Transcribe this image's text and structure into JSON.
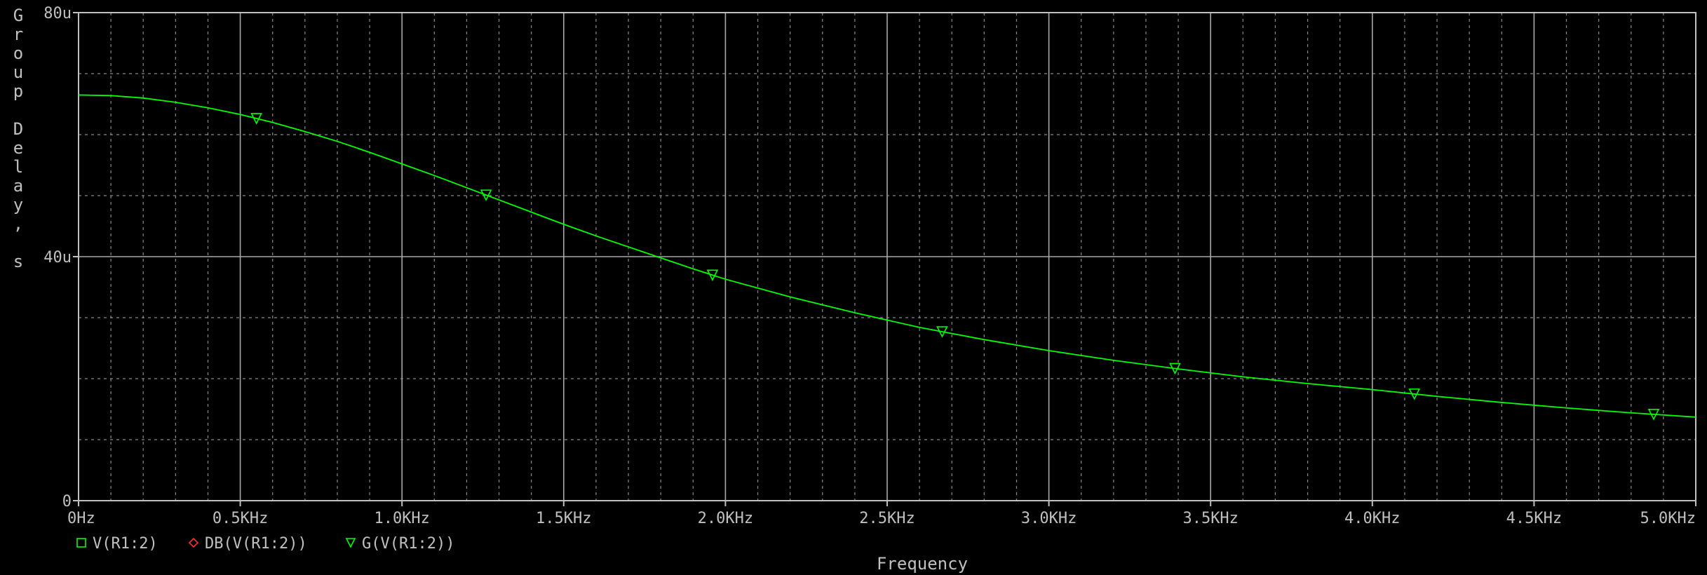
{
  "chart_data": {
    "type": "line",
    "xlabel": "Frequency",
    "ylabel": "Group Delay, s",
    "xlim": [
      0,
      5000
    ],
    "ylim": [
      0,
      80
    ],
    "x_ticks": [
      {
        "value": 0,
        "label": "0Hz"
      },
      {
        "value": 500,
        "label": "0.5KHz"
      },
      {
        "value": 1000,
        "label": "1.0KHz"
      },
      {
        "value": 1500,
        "label": "1.5KHz"
      },
      {
        "value": 2000,
        "label": "2.0KHz"
      },
      {
        "value": 2500,
        "label": "2.5KHz"
      },
      {
        "value": 3000,
        "label": "3.0KHz"
      },
      {
        "value": 3500,
        "label": "3.5KHz"
      },
      {
        "value": 4000,
        "label": "4.0KHz"
      },
      {
        "value": 4500,
        "label": "4.5KHz"
      },
      {
        "value": 5000,
        "label": "5.0KHz"
      }
    ],
    "y_ticks": [
      {
        "value": 0,
        "label": "0"
      },
      {
        "value": 40,
        "label": "40u"
      },
      {
        "value": 80,
        "label": "80u"
      }
    ],
    "grid": true,
    "legend": {
      "position": "bottom-left",
      "entries": [
        {
          "name": "V(R1:2)",
          "marker": "square",
          "color": "#00ff00"
        },
        {
          "name": "DB(V(R1:2))",
          "marker": "diamond",
          "color": "#ff3030"
        },
        {
          "name": "G(V(R1:2))",
          "marker": "triangle-down",
          "color": "#00ff00"
        }
      ]
    },
    "series": [
      {
        "name": "G(V(R1:2))",
        "color": "#00ff00",
        "marker": "triangle-down",
        "x": [
          0,
          100,
          200,
          300,
          400,
          500,
          600,
          700,
          800,
          900,
          1000,
          1100,
          1200,
          1300,
          1400,
          1500,
          1600,
          1700,
          1800,
          1900,
          2000,
          2200,
          2400,
          2600,
          2800,
          3000,
          3200,
          3400,
          3600,
          3800,
          4000,
          4200,
          4400,
          4600,
          4800,
          5000
        ],
        "values": [
          66.5,
          66.4,
          66.0,
          65.3,
          64.4,
          63.3,
          62.0,
          60.5,
          58.9,
          57.1,
          55.2,
          53.3,
          51.3,
          49.3,
          47.3,
          45.3,
          43.4,
          41.6,
          39.8,
          38.0,
          36.3,
          33.4,
          30.8,
          28.4,
          26.4,
          24.6,
          23.0,
          21.6,
          20.3,
          19.2,
          18.2,
          17.1,
          16.1,
          15.2,
          14.4,
          13.7
        ],
        "marker_x": [
          550,
          1260,
          1960,
          2670,
          3390,
          4130,
          4870
        ]
      }
    ]
  }
}
